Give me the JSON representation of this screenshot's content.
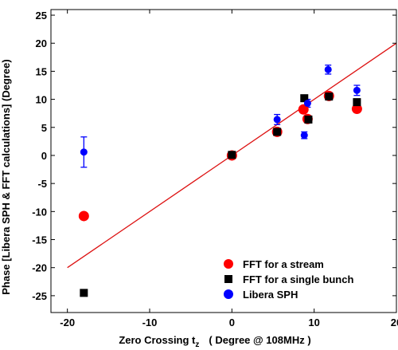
{
  "chart_data": {
    "type": "scatter",
    "xlabel": "Zero Crossing t",
    "xlabel_subscript": "z",
    "xlabel_suffix": "( Degree @ 108MHz )",
    "ylabel": "Phase [Libera SPH & FFT calculations] (Degree)",
    "xlim": [
      -22,
      20
    ],
    "ylim": [
      -28,
      26
    ],
    "x_ticks": [
      -20,
      -10,
      0,
      10,
      20
    ],
    "x_tick_labels": [
      "-20",
      "-10",
      "0",
      "10",
      "20"
    ],
    "y_ticks": [
      -25,
      -20,
      -15,
      -10,
      -5,
      0,
      5,
      10,
      15,
      20,
      25
    ],
    "y_tick_labels": [
      "-25",
      "-20",
      "-15",
      "-10",
      "-5",
      "0",
      "5",
      "10",
      "15",
      "20",
      "25"
    ],
    "grid": false,
    "legend_position": "bottom-right",
    "fit_line": {
      "color": "#dd1111",
      "x": [
        -20,
        20
      ],
      "y": [
        -20,
        20
      ]
    },
    "series": [
      {
        "name": "FFT for a stream",
        "marker": "circle",
        "color": "#ff0000",
        "points": [
          {
            "x": -18,
            "y": -10.8
          },
          {
            "x": 0,
            "y": 0
          },
          {
            "x": 5.5,
            "y": 4.2
          },
          {
            "x": 8.7,
            "y": 8.2
          },
          {
            "x": 9.2,
            "y": 6.5
          },
          {
            "x": 11.8,
            "y": 10.6
          },
          {
            "x": 15.2,
            "y": 8.3
          }
        ]
      },
      {
        "name": "FFT for a single bunch",
        "marker": "square",
        "color": "#000000",
        "points": [
          {
            "x": -18,
            "y": -24.5
          },
          {
            "x": 0,
            "y": 0.1
          },
          {
            "x": 5.5,
            "y": 4.2
          },
          {
            "x": 8.8,
            "y": 10.2
          },
          {
            "x": 9.3,
            "y": 6.4
          },
          {
            "x": 11.8,
            "y": 10.5
          },
          {
            "x": 15.2,
            "y": 9.5
          }
        ]
      },
      {
        "name": "Libera SPH",
        "marker": "circle",
        "color": "#0000ff",
        "points": [
          {
            "x": -18,
            "y": 0.6,
            "err": 2.7
          },
          {
            "x": 5.5,
            "y": 6.4,
            "err": 0.9
          },
          {
            "x": 8.8,
            "y": 3.6,
            "err": 0.6
          },
          {
            "x": 9.2,
            "y": 9.3,
            "err": 0.7
          },
          {
            "x": 11.7,
            "y": 15.3,
            "err": 0.8
          },
          {
            "x": 15.2,
            "y": 11.6,
            "err": 0.9
          }
        ]
      }
    ]
  }
}
